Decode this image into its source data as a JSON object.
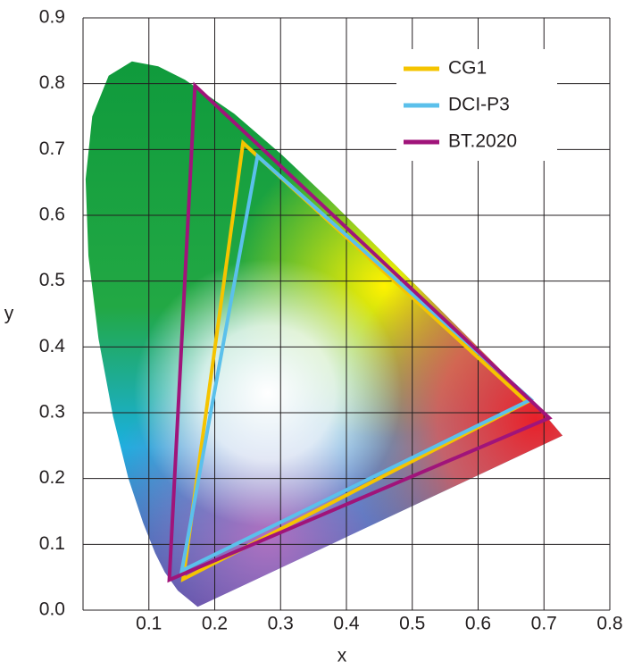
{
  "chart_data": {
    "type": "line",
    "x_label": "x",
    "y_label": "y",
    "xlim": [
      0,
      0.8
    ],
    "ylim": [
      0,
      0.9
    ],
    "xticks": [
      0.1,
      0.2,
      0.3,
      0.4,
      0.5,
      0.6,
      0.7,
      0.8
    ],
    "yticks": [
      {
        "value": 0,
        "label": "0.0"
      },
      0.1,
      0.2,
      0.3,
      0.4,
      0.5,
      0.6,
      0.7,
      0.8,
      0.9
    ],
    "grid": true,
    "legend": "upper right",
    "series": [
      {
        "name": "CG1",
        "color": "#f5c400",
        "x": [
          0.674,
          0.243,
          0.152
        ],
        "y": [
          0.316,
          0.71,
          0.047
        ]
      },
      {
        "name": "DCI-P3",
        "color": "#5bc0eb",
        "x": [
          0.68,
          0.265,
          0.15
        ],
        "y": [
          0.32,
          0.69,
          0.06
        ]
      },
      {
        "name": "BT.2020",
        "color": "#a0147a",
        "x": [
          0.708,
          0.17,
          0.131
        ],
        "y": [
          0.292,
          0.797,
          0.046
        ]
      }
    ]
  }
}
